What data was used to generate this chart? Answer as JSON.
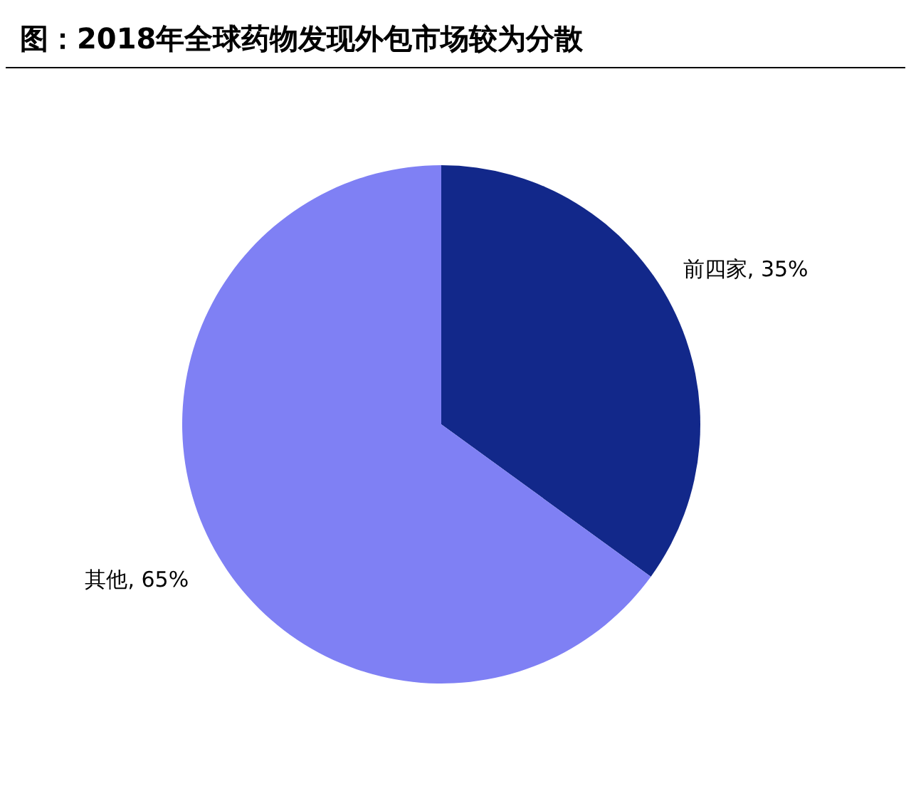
{
  "chart_data": {
    "type": "pie",
    "title": "图：2018年全球药物发现外包市场较为分散",
    "categories": [
      "前四家",
      "其他"
    ],
    "values": [
      35,
      65
    ],
    "value_labels": [
      "35%",
      "65%"
    ],
    "colors": [
      "#12288a",
      "#7f80f4"
    ]
  }
}
